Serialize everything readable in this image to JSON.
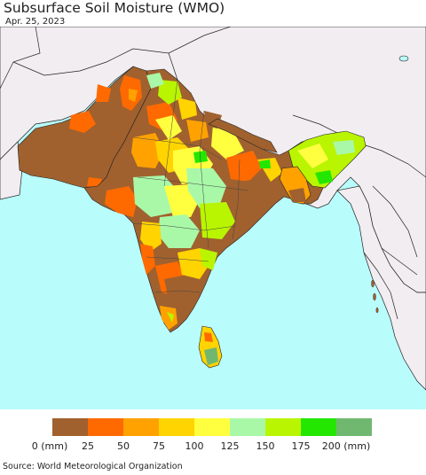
{
  "title": "Subsurface Soil Moisture (WMO)",
  "date": "Apr. 25, 2023",
  "source": "Source: World Meteorological Organization",
  "legend": {
    "colors": [
      "#a0612e",
      "#ff6a00",
      "#ffa200",
      "#ffd400",
      "#ffff40",
      "#a9f8a8",
      "#b9f500",
      "#23e700",
      "#70b870"
    ],
    "labels": [
      "0 (mm)",
      "25",
      "50",
      "75",
      "100",
      "125",
      "150",
      "175",
      "200 (mm)"
    ]
  },
  "map_colors": {
    "ocean": "#b9fcfc",
    "land_outside": "#f1edf1",
    "border": "#222222"
  }
}
